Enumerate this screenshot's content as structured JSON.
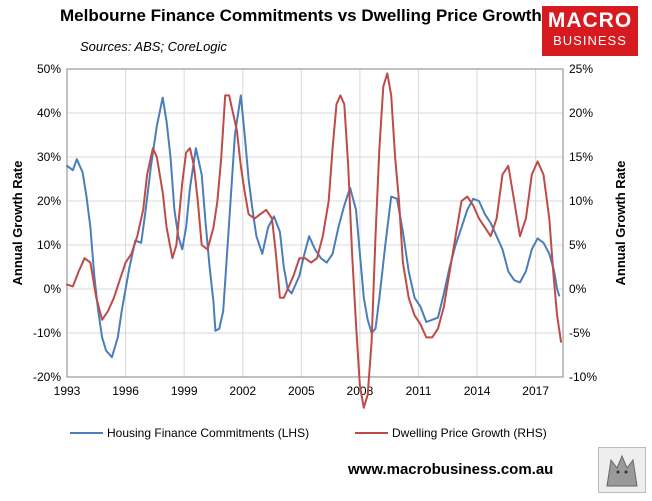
{
  "header": {
    "title": "Melbourne Finance Commitments vs Dwelling Price Growth",
    "subtitle": "Sources: ABS; CoreLogic",
    "logo_line1": "MACRO",
    "logo_line2": "BUSINESS",
    "website": "www.macrobusiness.com.au"
  },
  "colors": {
    "lhs": "#4a7ebb",
    "rhs": "#be4b48",
    "logo": "#d71920",
    "grid": "#d9d9d9"
  },
  "chart_data": {
    "type": "line",
    "x_tick_labels": [
      "1993",
      "1996",
      "1999",
      "2002",
      "2005",
      "2008",
      "2011",
      "2014",
      "2017"
    ],
    "x_tick_years": [
      1993,
      1996,
      1999,
      2002,
      2005,
      2008,
      2011,
      2014,
      2017
    ],
    "xlim": [
      1993,
      2018.4
    ],
    "ylim_left": [
      -20,
      50
    ],
    "ylim_right": [
      -10,
      25
    ],
    "left_tick_labels": [
      "50%",
      "40%",
      "30%",
      "20%",
      "10%",
      "0%",
      "-10%",
      "-20%"
    ],
    "right_tick_labels": [
      "25%",
      "20%",
      "15%",
      "10%",
      "5%",
      "0%",
      "-5%",
      "-10%"
    ],
    "ylabel_left": "Annual Growth Rate",
    "ylabel_right": "Annual Growth Rate",
    "legend_position": "bottom",
    "grid": true,
    "series": [
      {
        "name": "Housing Finance Commitments (LHS)",
        "axis": "left",
        "points": [
          [
            1993.0,
            28
          ],
          [
            1993.3,
            27
          ],
          [
            1993.5,
            29.5
          ],
          [
            1993.8,
            26.5
          ],
          [
            1994.0,
            21
          ],
          [
            1994.2,
            14
          ],
          [
            1994.4,
            3
          ],
          [
            1994.6,
            -5
          ],
          [
            1994.8,
            -11
          ],
          [
            1995.0,
            -14
          ],
          [
            1995.3,
            -15.5
          ],
          [
            1995.6,
            -11
          ],
          [
            1995.8,
            -5
          ],
          [
            1996.0,
            0
          ],
          [
            1996.2,
            5
          ],
          [
            1996.5,
            11
          ],
          [
            1996.8,
            10.5
          ],
          [
            1997.0,
            17
          ],
          [
            1997.3,
            28
          ],
          [
            1997.6,
            37
          ],
          [
            1997.9,
            43.5
          ],
          [
            1998.1,
            38
          ],
          [
            1998.3,
            30
          ],
          [
            1998.5,
            18
          ],
          [
            1998.7,
            12
          ],
          [
            1998.9,
            9
          ],
          [
            1999.1,
            14
          ],
          [
            1999.3,
            23
          ],
          [
            1999.6,
            32
          ],
          [
            1999.9,
            26
          ],
          [
            2000.1,
            15
          ],
          [
            2000.3,
            5
          ],
          [
            2000.5,
            -3
          ],
          [
            2000.6,
            -9.5
          ],
          [
            2000.8,
            -9
          ],
          [
            2001.0,
            -5
          ],
          [
            2001.3,
            15
          ],
          [
            2001.6,
            35
          ],
          [
            2001.9,
            44
          ],
          [
            2002.1,
            35
          ],
          [
            2002.3,
            25
          ],
          [
            2002.5,
            18
          ],
          [
            2002.7,
            12
          ],
          [
            2003.0,
            8
          ],
          [
            2003.3,
            14
          ],
          [
            2003.6,
            16.5
          ],
          [
            2003.9,
            13
          ],
          [
            2004.1,
            5
          ],
          [
            2004.3,
            0
          ],
          [
            2004.5,
            -1
          ],
          [
            2004.7,
            1
          ],
          [
            2004.9,
            3
          ],
          [
            2005.1,
            7
          ],
          [
            2005.4,
            12
          ],
          [
            2005.7,
            9
          ],
          [
            2006.0,
            7
          ],
          [
            2006.3,
            6
          ],
          [
            2006.6,
            8
          ],
          [
            2006.9,
            14
          ],
          [
            2007.2,
            19
          ],
          [
            2007.5,
            23
          ],
          [
            2007.8,
            18
          ],
          [
            2008.0,
            8
          ],
          [
            2008.2,
            -2
          ],
          [
            2008.4,
            -7
          ],
          [
            2008.6,
            -10
          ],
          [
            2008.8,
            -9
          ],
          [
            2009.0,
            -2
          ],
          [
            2009.3,
            10
          ],
          [
            2009.6,
            21
          ],
          [
            2009.9,
            20.5
          ],
          [
            2010.2,
            13
          ],
          [
            2010.5,
            4
          ],
          [
            2010.8,
            -2
          ],
          [
            2011.1,
            -4
          ],
          [
            2011.4,
            -7.5
          ],
          [
            2011.7,
            -7
          ],
          [
            2012.0,
            -6.5
          ],
          [
            2012.3,
            -1
          ],
          [
            2012.6,
            5
          ],
          [
            2012.9,
            10
          ],
          [
            2013.2,
            14
          ],
          [
            2013.5,
            18
          ],
          [
            2013.8,
            20.5
          ],
          [
            2014.1,
            20
          ],
          [
            2014.4,
            17
          ],
          [
            2014.7,
            15
          ],
          [
            2015.0,
            12
          ],
          [
            2015.3,
            9
          ],
          [
            2015.6,
            4
          ],
          [
            2015.9,
            2
          ],
          [
            2016.2,
            1.5
          ],
          [
            2016.5,
            4
          ],
          [
            2016.8,
            9
          ],
          [
            2017.1,
            11.5
          ],
          [
            2017.4,
            10.5
          ],
          [
            2017.7,
            8
          ],
          [
            2017.95,
            4
          ],
          [
            2018.1,
            0
          ],
          [
            2018.2,
            -1.5
          ]
        ]
      },
      {
        "name": "Dwelling Price Growth (RHS)",
        "axis": "right",
        "points": [
          [
            1993.0,
            0.5
          ],
          [
            1993.3,
            0.3
          ],
          [
            1993.6,
            2
          ],
          [
            1993.9,
            3.5
          ],
          [
            1994.2,
            3
          ],
          [
            1994.5,
            -1
          ],
          [
            1994.8,
            -3.5
          ],
          [
            1995.1,
            -2.5
          ],
          [
            1995.4,
            -1
          ],
          [
            1995.7,
            1
          ],
          [
            1996.0,
            3
          ],
          [
            1996.3,
            4
          ],
          [
            1996.6,
            6
          ],
          [
            1996.9,
            9
          ],
          [
            1997.1,
            13
          ],
          [
            1997.4,
            16
          ],
          [
            1997.6,
            15
          ],
          [
            1997.9,
            11
          ],
          [
            1998.1,
            7
          ],
          [
            1998.4,
            3.5
          ],
          [
            1998.6,
            5
          ],
          [
            1998.9,
            12
          ],
          [
            1999.1,
            15.5
          ],
          [
            1999.3,
            16
          ],
          [
            1999.5,
            14
          ],
          [
            1999.7,
            10
          ],
          [
            1999.9,
            5
          ],
          [
            2000.2,
            4.5
          ],
          [
            2000.5,
            7
          ],
          [
            2000.7,
            10
          ],
          [
            2000.9,
            15
          ],
          [
            2001.1,
            22
          ],
          [
            2001.3,
            22
          ],
          [
            2001.5,
            20
          ],
          [
            2001.7,
            18
          ],
          [
            2001.9,
            14
          ],
          [
            2002.1,
            11
          ],
          [
            2002.3,
            8.5
          ],
          [
            2002.6,
            8
          ],
          [
            2002.9,
            8.5
          ],
          [
            2003.2,
            9
          ],
          [
            2003.5,
            8
          ],
          [
            2003.7,
            4
          ],
          [
            2003.9,
            -1
          ],
          [
            2004.1,
            -1
          ],
          [
            2004.3,
            0
          ],
          [
            2004.6,
            1.5
          ],
          [
            2004.9,
            3.5
          ],
          [
            2005.2,
            3.5
          ],
          [
            2005.5,
            3
          ],
          [
            2005.8,
            3.5
          ],
          [
            2006.1,
            6
          ],
          [
            2006.4,
            10
          ],
          [
            2006.6,
            16
          ],
          [
            2006.8,
            21
          ],
          [
            2007.0,
            22
          ],
          [
            2007.2,
            21
          ],
          [
            2007.4,
            14
          ],
          [
            2007.6,
            4
          ],
          [
            2007.8,
            -4
          ],
          [
            2008.0,
            -11
          ],
          [
            2008.2,
            -13.5
          ],
          [
            2008.4,
            -12
          ],
          [
            2008.6,
            -6
          ],
          [
            2008.8,
            6
          ],
          [
            2009.0,
            16
          ],
          [
            2009.2,
            23
          ],
          [
            2009.4,
            24.5
          ],
          [
            2009.6,
            22
          ],
          [
            2009.8,
            15
          ],
          [
            2010.0,
            10
          ],
          [
            2010.2,
            3
          ],
          [
            2010.5,
            -1
          ],
          [
            2010.8,
            -3
          ],
          [
            2011.1,
            -4
          ],
          [
            2011.4,
            -5.5
          ],
          [
            2011.7,
            -5.5
          ],
          [
            2012.0,
            -4.5
          ],
          [
            2012.3,
            -2
          ],
          [
            2012.6,
            2
          ],
          [
            2012.9,
            6
          ],
          [
            2013.2,
            10
          ],
          [
            2013.5,
            10.5
          ],
          [
            2013.8,
            9.5
          ],
          [
            2014.1,
            8
          ],
          [
            2014.4,
            7
          ],
          [
            2014.7,
            6
          ],
          [
            2015.0,
            8
          ],
          [
            2015.3,
            13
          ],
          [
            2015.6,
            14
          ],
          [
            2015.9,
            10
          ],
          [
            2016.2,
            6
          ],
          [
            2016.5,
            8
          ],
          [
            2016.8,
            13
          ],
          [
            2017.1,
            14.5
          ],
          [
            2017.4,
            13
          ],
          [
            2017.7,
            8
          ],
          [
            2017.9,
            2
          ],
          [
            2018.1,
            -3
          ],
          [
            2018.3,
            -6
          ]
        ]
      }
    ]
  }
}
